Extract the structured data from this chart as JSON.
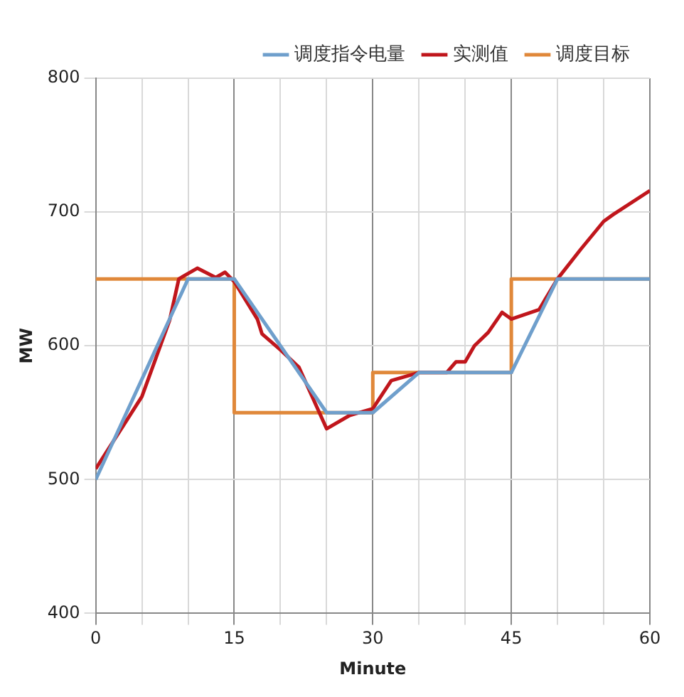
{
  "chart_data": {
    "type": "line",
    "xlabel": "Minute",
    "ylabel": "MW",
    "xlim": [
      0,
      60
    ],
    "xticks": [
      0,
      {
        "value": 5,
        "label": null
      },
      {
        "value": 10,
        "label": null
      },
      15,
      {
        "value": 20,
        "label": null
      },
      {
        "value": 25,
        "label": null
      },
      30,
      {
        "value": 35,
        "label": null
      },
      {
        "value": 40,
        "label": null
      },
      45,
      {
        "value": 50,
        "label": null
      },
      {
        "value": 55,
        "label": null
      },
      60
    ],
    "ylim": [
      400,
      800
    ],
    "yticks": [
      400,
      500,
      600,
      700,
      800
    ],
    "grid": true,
    "legend": "top right",
    "marker": "none",
    "line_style": "solid",
    "series": [
      {
        "name": "调度指令电量",
        "color": "#6f9fcc",
        "x": [
          0,
          10,
          15,
          25,
          30,
          35,
          45,
          50,
          60
        ],
        "values": [
          500,
          650,
          650,
          550,
          550,
          580,
          580,
          650,
          650
        ]
      },
      {
        "name": "实测值",
        "color": "#c0161c",
        "x": [
          0,
          5,
          8,
          9,
          11,
          13,
          14,
          15,
          17.5,
          18,
          20,
          22,
          25,
          27.5,
          30,
          32,
          35,
          38,
          39,
          40,
          41,
          42.5,
          44,
          45,
          48,
          50,
          52.5,
          55,
          56,
          60
        ],
        "values": [
          508,
          562,
          619,
          650,
          658,
          651,
          655,
          648,
          620,
          609,
          597,
          584,
          538,
          548,
          553,
          574,
          580,
          580,
          588,
          588,
          600,
          610,
          625,
          620,
          627,
          650,
          672,
          693,
          698,
          716
        ]
      },
      {
        "name": "调度目标",
        "type": "step",
        "color": "#e0883a",
        "x": [
          0,
          15,
          30,
          45,
          60
        ],
        "values": [
          650,
          550,
          580,
          650,
          650
        ]
      }
    ]
  }
}
